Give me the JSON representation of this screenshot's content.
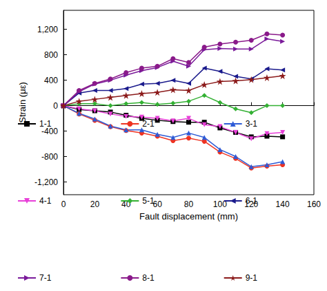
{
  "chart_data": {
    "type": "line",
    "x_label": "Fault displacement (mm)",
    "y_label": "Strain (με)",
    "x": [
      0,
      10,
      20,
      30,
      40,
      50,
      60,
      70,
      80,
      90,
      100,
      110,
      120,
      130,
      140
    ],
    "xlim": [
      0,
      160
    ],
    "xticks": [
      0,
      20,
      40,
      60,
      80,
      100,
      120,
      140,
      160
    ],
    "ylim": [
      -1400,
      1500
    ],
    "yticks": [
      -1200,
      -800,
      -400,
      0,
      400,
      800,
      1200
    ],
    "grid": false,
    "legend": "bottom",
    "series": [
      {
        "name": "1-1",
        "color": "#000000",
        "marker": "square",
        "values": [
          0,
          -60,
          -80,
          -100,
          -150,
          -200,
          -230,
          -250,
          -260,
          -260,
          -350,
          -420,
          -490,
          -480,
          -490
        ]
      },
      {
        "name": "2-1",
        "color": "#ee3322",
        "marker": "circle",
        "values": [
          0,
          -130,
          -230,
          -330,
          -390,
          -430,
          -480,
          -550,
          -510,
          -560,
          -730,
          -830,
          -980,
          -950,
          -930
        ]
      },
      {
        "name": "3-1",
        "color": "#2e5bd6",
        "marker": "triangle-up",
        "values": [
          0,
          -120,
          -210,
          -320,
          -380,
          -380,
          -450,
          -500,
          -430,
          -500,
          -690,
          -800,
          -960,
          -930,
          -880
        ]
      },
      {
        "name": "4-1",
        "color": "#e83fd8",
        "marker": "triangle-down",
        "values": [
          0,
          -50,
          -80,
          -130,
          -170,
          -180,
          -200,
          -240,
          -200,
          -300,
          -330,
          -420,
          -520,
          -440,
          -420
        ]
      },
      {
        "name": "5-1",
        "color": "#33b033",
        "marker": "diamond",
        "values": [
          0,
          30,
          30,
          0,
          30,
          50,
          20,
          40,
          70,
          160,
          50,
          -50,
          -110,
          0,
          0
        ]
      },
      {
        "name": "6-1",
        "color": "#1a1a8c",
        "marker": "triangle-left",
        "values": [
          0,
          200,
          240,
          240,
          270,
          340,
          350,
          400,
          350,
          590,
          540,
          460,
          420,
          580,
          560
        ]
      },
      {
        "name": "7-1",
        "color": "#7a1a9a",
        "marker": "triangle-right",
        "values": [
          0,
          220,
          340,
          400,
          480,
          550,
          600,
          700,
          620,
          880,
          900,
          890,
          890,
          1050,
          1010
        ]
      },
      {
        "name": "8-1",
        "color": "#8a1a8a",
        "marker": "circle",
        "values": [
          0,
          240,
          350,
          420,
          520,
          590,
          620,
          740,
          680,
          920,
          970,
          1000,
          1030,
          1130,
          1110
        ]
      },
      {
        "name": "9-1",
        "color": "#8b1a1a",
        "marker": "star",
        "values": [
          0,
          70,
          100,
          130,
          160,
          190,
          210,
          250,
          240,
          330,
          380,
          390,
          410,
          440,
          470
        ]
      }
    ]
  }
}
